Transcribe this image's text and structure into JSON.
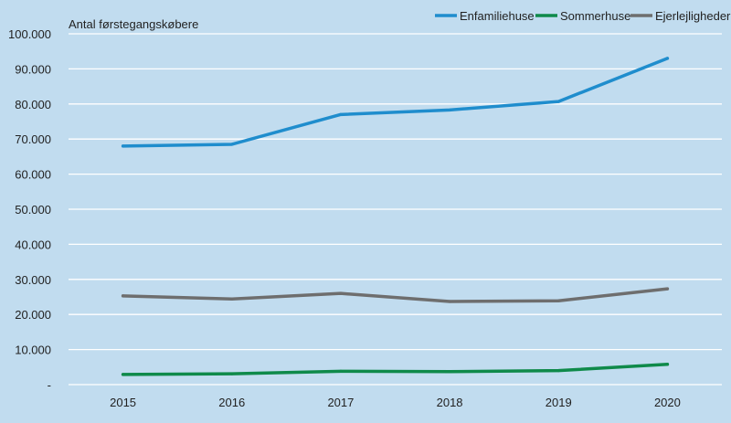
{
  "chart_data": {
    "type": "line",
    "title": "",
    "ylabel": "Antal førstegangskøbere",
    "xlabel": "",
    "categories": [
      "2015",
      "2016",
      "2017",
      "2018",
      "2019",
      "2020"
    ],
    "ylim": [
      0,
      100000
    ],
    "yticks": [
      0,
      10000,
      20000,
      30000,
      40000,
      50000,
      60000,
      70000,
      80000,
      90000,
      100000
    ],
    "ytick_labels": [
      "-",
      "10.000",
      "20.000",
      "30.000",
      "40.000",
      "50.000",
      "60.000",
      "70.000",
      "80.000",
      "90.000",
      "100.000"
    ],
    "grid": true,
    "legend_position": "top-right",
    "series": [
      {
        "name": "Enfamiliehuse",
        "color": "#1f8dcd",
        "values": [
          68000,
          68500,
          77000,
          78300,
          80700,
          93000
        ]
      },
      {
        "name": "Sommerhuse",
        "color": "#0f8a4a",
        "values": [
          2900,
          3100,
          3800,
          3700,
          4000,
          5800
        ]
      },
      {
        "name": "Ejerlejligheder",
        "color": "#6e6e6e",
        "values": [
          25300,
          24400,
          26000,
          23700,
          23900,
          27300
        ]
      }
    ]
  }
}
